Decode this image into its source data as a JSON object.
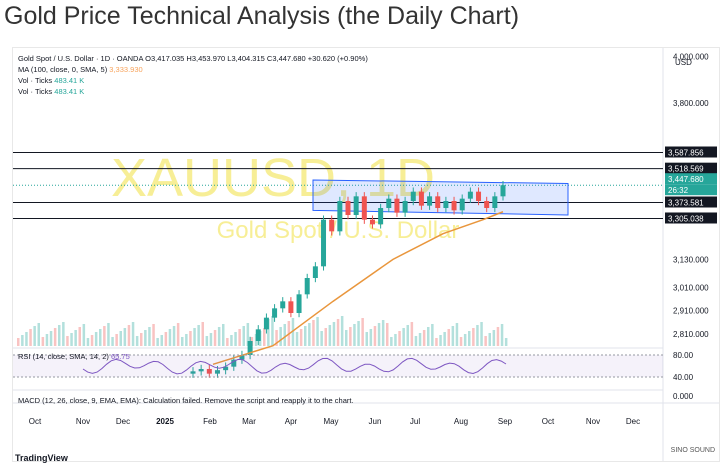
{
  "page_title": "Gold Price Technical Analysis (the Daily Chart)",
  "chart_data": {
    "type": "candlestick",
    "symbol_line": "Gold Spot / U.S. Dollar · 1D · OANDA",
    "ohlc_text": "O3,417.035 H3,453.970 L3,404.315 C3,447.680 +30.620 (+0.90%)",
    "ma_label": "MA (100, close, 0, SMA, 5)",
    "ma_value": "3,333.930",
    "vol_label_1": "Vol · Ticks",
    "vol_value_1": "483.41 K",
    "vol_label_2": "Vol · Ticks",
    "vol_value_2": "483.41 K",
    "watermark_symbol": "XAUUSD, 1D",
    "watermark_name": "Gold Spot / U.S. Dollar",
    "currency": "USD",
    "y_ticks": [
      "4,000.000",
      "3,800.000",
      "3,130.000",
      "3,010.000",
      "2,910.000",
      "2,810.000"
    ],
    "price_labels": [
      "3,587.856",
      "3,518.569",
      "3,447.680",
      "26:32",
      "3,373.581",
      "3,305.038"
    ],
    "x_labels": [
      "Oct",
      "Nov",
      "Dec",
      "2025",
      "Feb",
      "Mar",
      "Apr",
      "May",
      "Jun",
      "Jul",
      "Aug",
      "Sep",
      "Oct",
      "Nov",
      "Dec"
    ],
    "rsi_label": "RSI (14, close, SMA, 14, 2)",
    "rsi_value": "65.75",
    "rsi_ticks": [
      "80.00",
      "40.00"
    ],
    "macd_note": "MACD (12, 26, close, 9, EMA, EMA): Calculation failed. Remove the script and reapply it to the chart.",
    "macd_tick": "0.000",
    "close": [
      2650,
      2660,
      2640,
      2655,
      2670,
      2700,
      2720,
      2780,
      2830,
      2880,
      2920,
      2950,
      2900,
      2980,
      3050,
      3100,
      3300,
      3250,
      3380,
      3320,
      3400,
      3300,
      3280,
      3350,
      3390,
      3330,
      3380,
      3420,
      3360,
      3400,
      3350,
      3380,
      3340,
      3390,
      3420,
      3380,
      3350,
      3400,
      3447.68
    ],
    "colors": {
      "up": "#26a69a",
      "down": "#ef5350",
      "ma": "#e9963c",
      "channel": "#2962ff",
      "rsi": "#7e57c2",
      "watermark": "#f0e040"
    }
  },
  "brand": {
    "line1": "SINO SOUND",
    "line2": "TradingView"
  }
}
